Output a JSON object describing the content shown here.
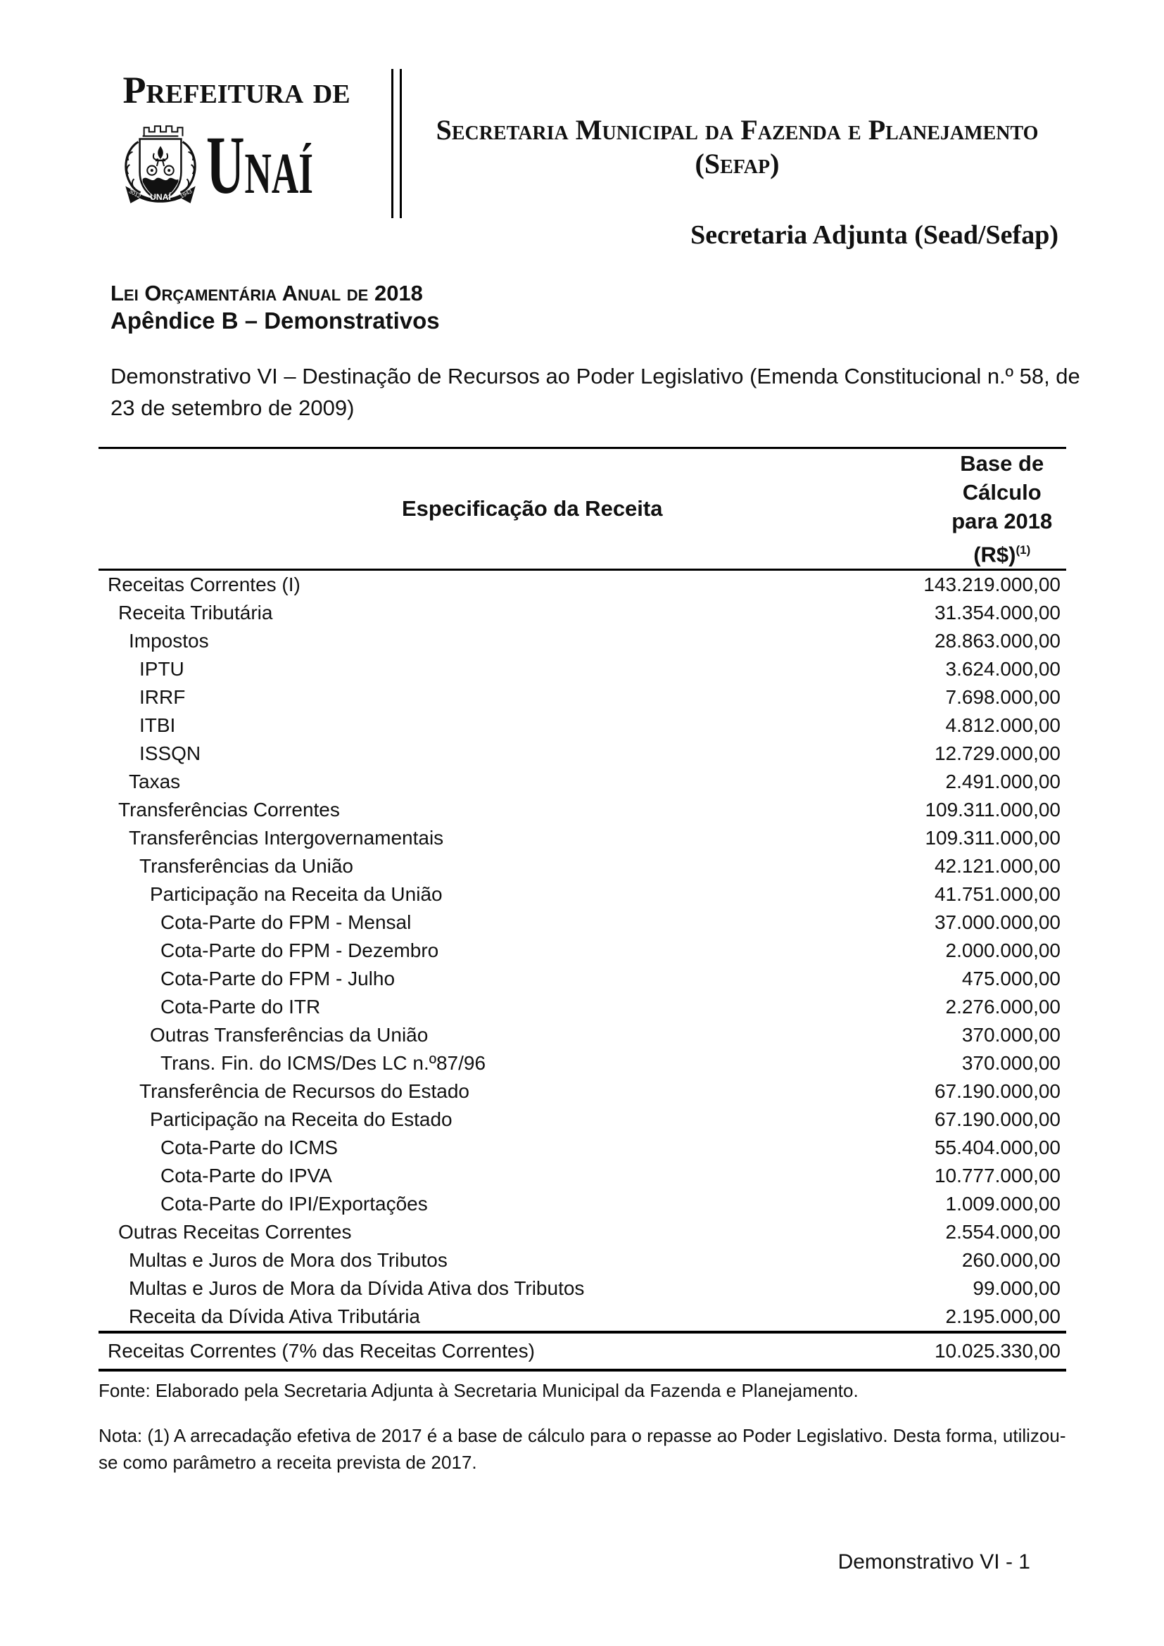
{
  "colors": {
    "text": "#111111",
    "rule": "#000000",
    "background": "#ffffff"
  },
  "letterhead": {
    "org_small": "Prefeitura de",
    "org_large": "Unaí",
    "crest": {
      "banner_left": "3012",
      "banner_center": "UNAÍ",
      "banner_right": "1943"
    },
    "secretariat_line1": "Secretaria Municipal da Fazenda e Planejamento",
    "secretariat_line2": "(Sefap)",
    "sub_secretariat": "Secretaria Adjunta (Sead/Sefap)"
  },
  "document": {
    "law_title": "Lei Orçamentária Anual de 2018",
    "appendix": "Apêndice B – Demonstrativos",
    "statement_title": "Demonstrativo VI – Destinação de Recursos ao Poder Legislativo (Emenda Constitucional n.º 58, de 23 de setembro de 2009)"
  },
  "table": {
    "col1_header": "Especificação da Receita",
    "col2_header_line1": "Base de Cálculo",
    "col2_header_line2": "para 2018 (R$)",
    "col2_header_superscript": "(1)",
    "rows": [
      {
        "label": "Receitas Correntes (I)",
        "value": "143.219.000,00",
        "indent": 0
      },
      {
        "label": "Receita Tributária",
        "value": "31.354.000,00",
        "indent": 1
      },
      {
        "label": "Impostos",
        "value": "28.863.000,00",
        "indent": 2
      },
      {
        "label": "IPTU",
        "value": "3.624.000,00",
        "indent": 3
      },
      {
        "label": "IRRF",
        "value": "7.698.000,00",
        "indent": 3
      },
      {
        "label": "ITBI",
        "value": "4.812.000,00",
        "indent": 3
      },
      {
        "label": "ISSQN",
        "value": "12.729.000,00",
        "indent": 3
      },
      {
        "label": "Taxas",
        "value": "2.491.000,00",
        "indent": 2
      },
      {
        "label": "Transferências Correntes",
        "value": "109.311.000,00",
        "indent": 1
      },
      {
        "label": "Transferências Intergovernamentais",
        "value": "109.311.000,00",
        "indent": 2
      },
      {
        "label": "Transferências da União",
        "value": "42.121.000,00",
        "indent": 3
      },
      {
        "label": "Participação na Receita da União",
        "value": "41.751.000,00",
        "indent": 4
      },
      {
        "label": "Cota-Parte do FPM - Mensal",
        "value": "37.000.000,00",
        "indent": 5
      },
      {
        "label": "Cota-Parte do FPM - Dezembro",
        "value": "2.000.000,00",
        "indent": 5
      },
      {
        "label": "Cota-Parte do FPM - Julho",
        "value": "475.000,00",
        "indent": 5
      },
      {
        "label": "Cota-Parte do ITR",
        "value": "2.276.000,00",
        "indent": 5
      },
      {
        "label": "Outras Transferências da União",
        "value": "370.000,00",
        "indent": 4
      },
      {
        "label": "Trans. Fin. do ICMS/Des LC n.º87/96",
        "value": "370.000,00",
        "indent": 5
      },
      {
        "label": "Transferência de Recursos do Estado",
        "value": "67.190.000,00",
        "indent": 3
      },
      {
        "label": "Participação na Receita do Estado",
        "value": "67.190.000,00",
        "indent": 4
      },
      {
        "label": "Cota-Parte do ICMS",
        "value": "55.404.000,00",
        "indent": 5
      },
      {
        "label": "Cota-Parte do IPVA",
        "value": "10.777.000,00",
        "indent": 5
      },
      {
        "label": "Cota-Parte do IPI/Exportações",
        "value": "1.009.000,00",
        "indent": 5
      },
      {
        "label": "Outras Receitas Correntes",
        "value": "2.554.000,00",
        "indent": 1
      },
      {
        "label": "Multas e Juros de Mora dos Tributos",
        "value": "260.000,00",
        "indent": 2
      },
      {
        "label": "Multas e Juros de Mora da Dívida Ativa dos Tributos",
        "value": "99.000,00",
        "indent": 2
      },
      {
        "label": "Receita da Dívida Ativa Tributária",
        "value": "2.195.000,00",
        "indent": 2
      }
    ],
    "total_row": {
      "label": "Receitas Correntes (7% das Receitas Correntes)",
      "value": "10.025.330,00"
    }
  },
  "notes": {
    "fonte": "Fonte: Elaborado pela Secretaria Adjunta à Secretaria Municipal da Fazenda e Planejamento.",
    "nota": "Nota: (1) A arrecadação efetiva de 2017 é a base de cálculo para o repasse ao Poder Legislativo. Desta forma, utilizou-se como parâmetro a receita prevista de 2017."
  },
  "footer": {
    "page_label": "Demonstrativo VI - 1"
  }
}
